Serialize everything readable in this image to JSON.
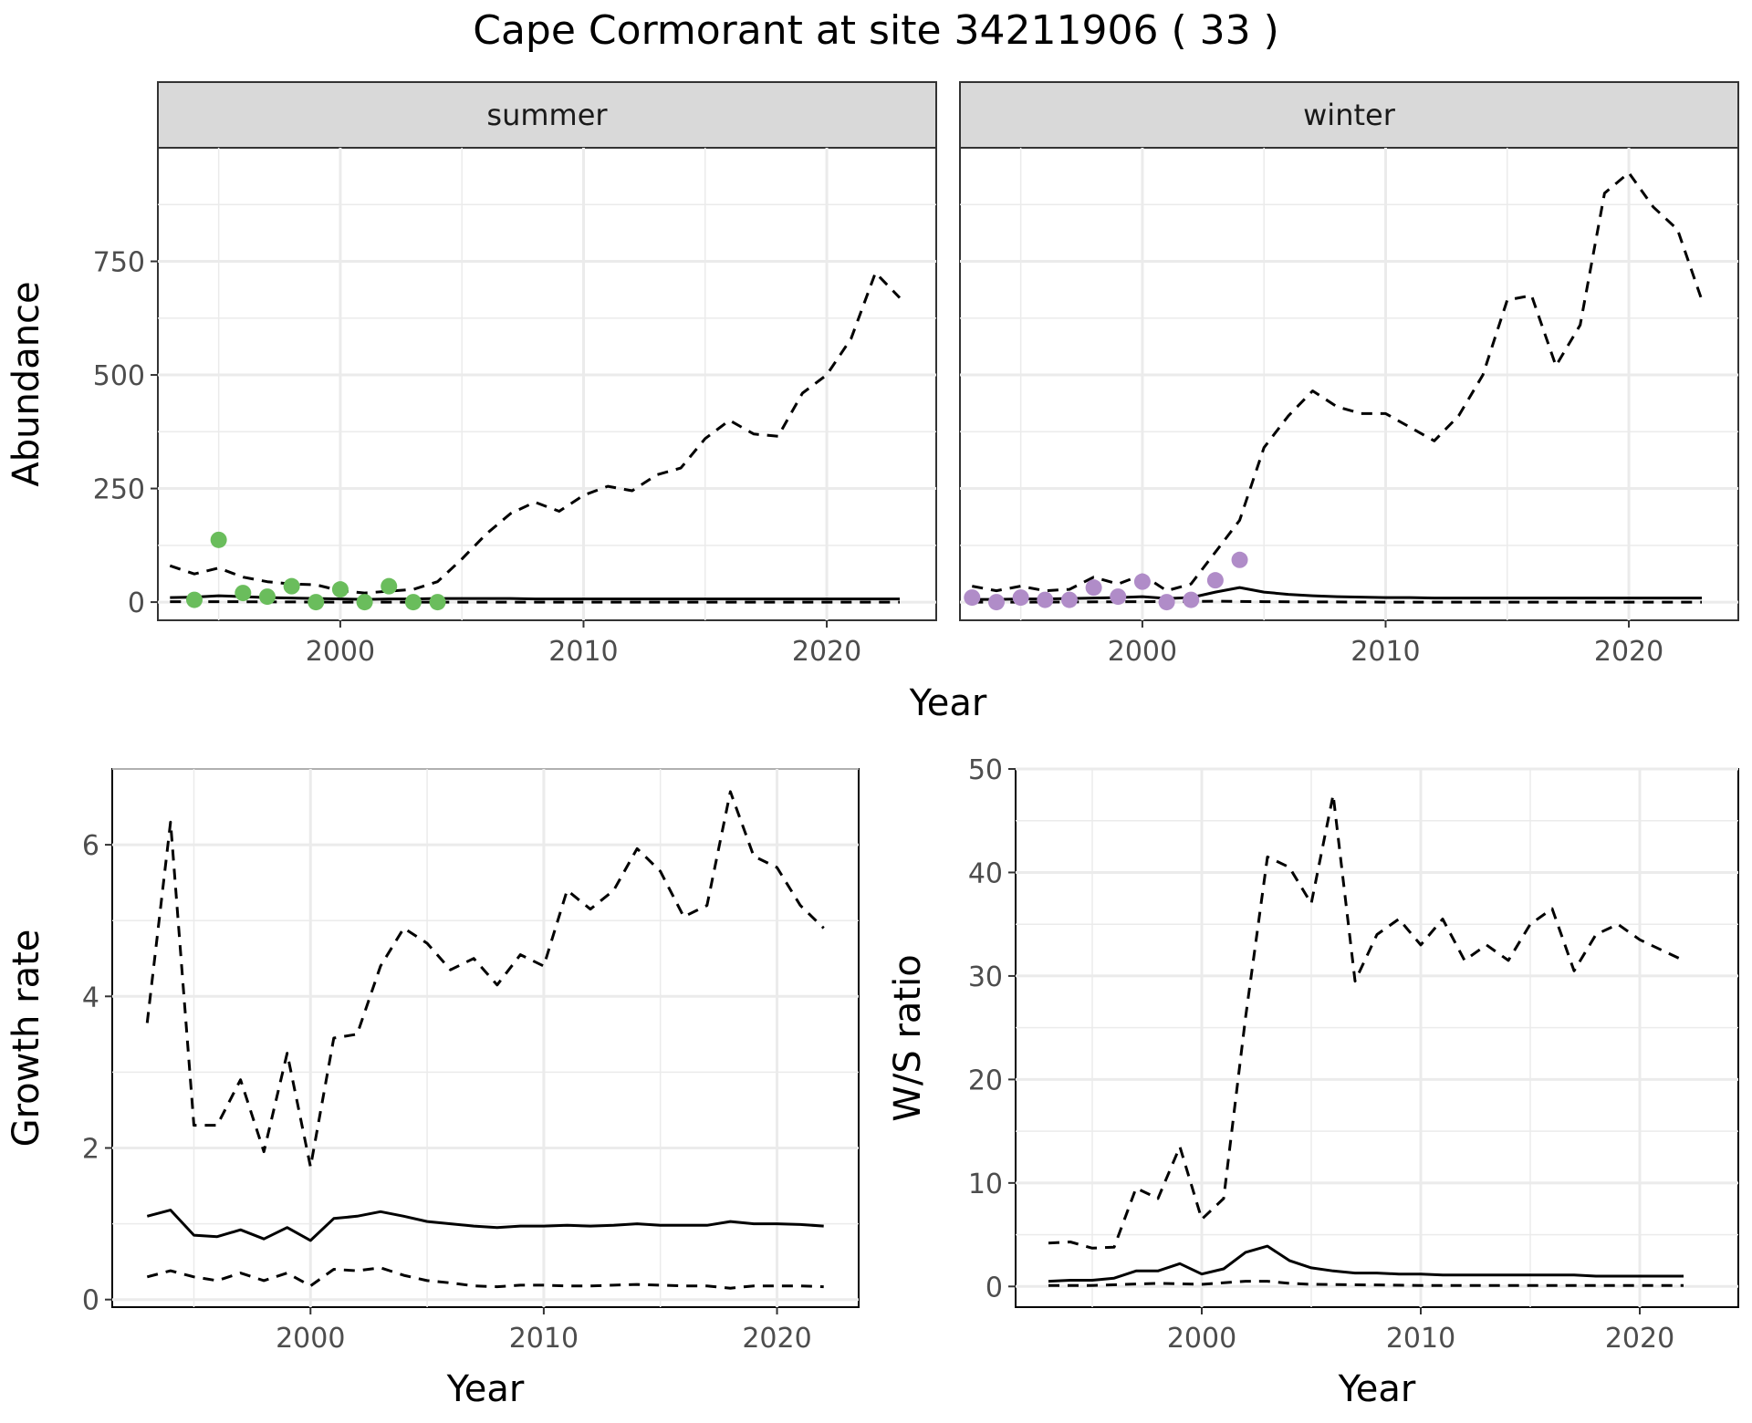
{
  "title": "Cape Cormorant at site 34211906 ( 33 )",
  "colors": {
    "summer_points": "#6ABD5C",
    "winter_points": "#B08CC8",
    "lines": "#000000",
    "strip": "#D9D9D9",
    "grid": "#EBEBEB"
  },
  "chart_data": [
    {
      "type": "line",
      "facet": "summer",
      "xlabel": "",
      "ylabel": "Abundance",
      "xlim": [
        1992.5,
        2024.5
      ],
      "ylim": [
        -40,
        1000
      ],
      "x_ticks": [
        2000,
        2010,
        2020
      ],
      "y_ticks": [
        0,
        250,
        500,
        750
      ],
      "grid": true,
      "series": [
        {
          "style": "solid",
          "x": [
            1993,
            1994,
            1995,
            1996,
            1997,
            1998,
            1999,
            2000,
            2001,
            2002,
            2003,
            2004,
            2005,
            2006,
            2007,
            2008,
            2009,
            2010,
            2011,
            2012,
            2013,
            2014,
            2015,
            2016,
            2017,
            2018,
            2019,
            2020,
            2021,
            2022,
            2023
          ],
          "y": [
            10,
            11,
            14,
            12,
            10,
            9,
            8,
            7,
            6,
            7,
            7,
            8,
            8,
            8,
            8,
            7,
            7,
            7,
            7,
            7,
            7,
            7,
            7,
            7,
            7,
            7,
            7,
            7,
            7,
            7,
            7
          ]
        },
        {
          "style": "dashed",
          "x": [
            1993,
            1994,
            1995,
            1996,
            1997,
            1998,
            1999,
            2000,
            2001,
            2002,
            2003,
            2004,
            2005,
            2006,
            2007,
            2008,
            2009,
            2010,
            2011,
            2012,
            2013,
            2014,
            2015,
            2016,
            2017,
            2018,
            2019,
            2020,
            2021,
            2022,
            2023
          ],
          "y": [
            80,
            62,
            75,
            55,
            45,
            40,
            38,
            25,
            20,
            24,
            28,
            45,
            95,
            150,
            195,
            220,
            200,
            235,
            255,
            245,
            280,
            295,
            360,
            400,
            370,
            365,
            460,
            500,
            580,
            725,
            670
          ]
        },
        {
          "style": "dashed",
          "x": [
            1993,
            1995,
            2000,
            2005,
            2010,
            2015,
            2020,
            2023
          ],
          "y": [
            1,
            1,
            0,
            0,
            0,
            0,
            0,
            0
          ]
        },
        {
          "style": "points",
          "x": [
            1994,
            1995,
            1996,
            1997,
            1998,
            1999,
            2000,
            2001,
            2002,
            2003,
            2004
          ],
          "y": [
            5,
            137,
            20,
            12,
            35,
            0,
            28,
            0,
            35,
            0,
            0
          ]
        }
      ]
    },
    {
      "type": "line",
      "facet": "winter",
      "xlabel": "",
      "ylabel": "",
      "xlim": [
        1992.5,
        2024.5
      ],
      "ylim": [
        -40,
        1000
      ],
      "x_ticks": [
        2000,
        2010,
        2020
      ],
      "y_ticks": [
        0,
        250,
        500,
        750
      ],
      "grid": true,
      "series": [
        {
          "style": "solid",
          "x": [
            1993,
            1994,
            1995,
            1996,
            1997,
            1998,
            1999,
            2000,
            2001,
            2002,
            2003,
            2004,
            2005,
            2006,
            2007,
            2008,
            2009,
            2010,
            2011,
            2012,
            2013,
            2014,
            2015,
            2016,
            2017,
            2018,
            2019,
            2020,
            2021,
            2022,
            2023
          ],
          "y": [
            6,
            6,
            7,
            7,
            8,
            9,
            10,
            12,
            8,
            10,
            22,
            32,
            22,
            17,
            14,
            12,
            11,
            10,
            10,
            9,
            9,
            9,
            9,
            9,
            9,
            9,
            9,
            9,
            9,
            9,
            9
          ]
        },
        {
          "style": "dashed",
          "x": [
            1993,
            1994,
            1995,
            1996,
            1997,
            1998,
            1999,
            2000,
            2001,
            2002,
            2003,
            2004,
            2005,
            2006,
            2007,
            2008,
            2009,
            2010,
            2011,
            2012,
            2013,
            2014,
            2015,
            2016,
            2017,
            2018,
            2019,
            2020,
            2021,
            2022,
            2023
          ],
          "y": [
            35,
            25,
            35,
            25,
            28,
            55,
            40,
            60,
            25,
            40,
            110,
            180,
            340,
            410,
            465,
            430,
            415,
            415,
            385,
            355,
            410,
            500,
            665,
            675,
            520,
            610,
            900,
            945,
            870,
            820,
            665
          ]
        },
        {
          "style": "dashed",
          "x": [
            1993,
            1995,
            2000,
            2003,
            2005,
            2010,
            2015,
            2020,
            2023
          ],
          "y": [
            0,
            0,
            1,
            2,
            1,
            0,
            0,
            0,
            0
          ]
        },
        {
          "style": "points",
          "x": [
            1993,
            1994,
            1995,
            1996,
            1997,
            1998,
            1999,
            2000,
            2001,
            2002,
            2003,
            2004
          ],
          "y": [
            10,
            0,
            10,
            5,
            5,
            32,
            12,
            45,
            0,
            5,
            48,
            93
          ]
        }
      ]
    },
    {
      "type": "line",
      "xlabel": "Year",
      "ylabel": "Growth rate",
      "xlim": [
        1991.5,
        2023.5
      ],
      "ylim": [
        -0.1,
        7.0
      ],
      "x_ticks": [
        2000,
        2010,
        2020
      ],
      "y_ticks": [
        0,
        2,
        4,
        6
      ],
      "grid": true,
      "series": [
        {
          "style": "solid",
          "x": [
            1993,
            1994,
            1995,
            1996,
            1997,
            1998,
            1999,
            2000,
            2001,
            2002,
            2003,
            2004,
            2005,
            2006,
            2007,
            2008,
            2009,
            2010,
            2011,
            2012,
            2013,
            2014,
            2015,
            2016,
            2017,
            2018,
            2019,
            2020,
            2021,
            2022
          ],
          "y": [
            1.1,
            1.18,
            0.85,
            0.83,
            0.92,
            0.8,
            0.95,
            0.78,
            1.07,
            1.1,
            1.16,
            1.1,
            1.03,
            1.0,
            0.97,
            0.95,
            0.97,
            0.97,
            0.98,
            0.97,
            0.98,
            1.0,
            0.98,
            0.98,
            0.98,
            1.03,
            1.0,
            1.0,
            0.99,
            0.97
          ]
        },
        {
          "style": "dashed",
          "x": [
            1993,
            1994,
            1995,
            1996,
            1997,
            1998,
            1999,
            2000,
            2001,
            2002,
            2003,
            2004,
            2005,
            2006,
            2007,
            2008,
            2009,
            2010,
            2011,
            2012,
            2013,
            2014,
            2015,
            2016,
            2017,
            2018,
            2019,
            2020,
            2021,
            2022
          ],
          "y": [
            3.65,
            6.3,
            2.3,
            2.3,
            2.9,
            1.95,
            3.25,
            1.75,
            3.45,
            3.5,
            4.4,
            4.9,
            4.7,
            4.35,
            4.5,
            4.15,
            4.55,
            4.4,
            5.4,
            5.15,
            5.4,
            5.95,
            5.65,
            5.05,
            5.2,
            6.7,
            5.85,
            5.7,
            5.2,
            4.9
          ]
        },
        {
          "style": "dashed",
          "x": [
            1993,
            1994,
            1995,
            1996,
            1997,
            1998,
            1999,
            2000,
            2001,
            2002,
            2003,
            2004,
            2005,
            2006,
            2007,
            2008,
            2009,
            2010,
            2011,
            2012,
            2013,
            2014,
            2015,
            2016,
            2017,
            2018,
            2019,
            2020,
            2021,
            2022
          ],
          "y": [
            0.3,
            0.38,
            0.3,
            0.25,
            0.35,
            0.25,
            0.35,
            0.18,
            0.4,
            0.38,
            0.42,
            0.32,
            0.25,
            0.22,
            0.18,
            0.17,
            0.19,
            0.19,
            0.18,
            0.18,
            0.19,
            0.2,
            0.19,
            0.18,
            0.18,
            0.15,
            0.18,
            0.18,
            0.18,
            0.17
          ]
        }
      ]
    },
    {
      "type": "line",
      "xlabel": "Year",
      "ylabel": "W/S ratio",
      "xlim": [
        1991.5,
        2024.5
      ],
      "ylim": [
        -2,
        50
      ],
      "x_ticks": [
        2000,
        2010,
        2020
      ],
      "y_ticks": [
        0,
        10,
        20,
        30,
        40,
        50
      ],
      "grid": true,
      "series": [
        {
          "style": "solid",
          "x": [
            1993,
            1994,
            1995,
            1996,
            1997,
            1998,
            1999,
            2000,
            2001,
            2002,
            2003,
            2004,
            2005,
            2006,
            2007,
            2008,
            2009,
            2010,
            2011,
            2012,
            2013,
            2014,
            2015,
            2016,
            2017,
            2018,
            2019,
            2020,
            2021,
            2022
          ],
          "y": [
            0.5,
            0.6,
            0.6,
            0.8,
            1.5,
            1.5,
            2.2,
            1.2,
            1.7,
            3.3,
            3.9,
            2.5,
            1.8,
            1.5,
            1.3,
            1.3,
            1.2,
            1.2,
            1.1,
            1.1,
            1.1,
            1.1,
            1.1,
            1.1,
            1.1,
            1.0,
            1.0,
            1.0,
            1.0,
            1.0
          ]
        },
        {
          "style": "dashed",
          "x": [
            1993,
            1994,
            1995,
            1996,
            1997,
            1998,
            1999,
            2000,
            2001,
            2002,
            2003,
            2004,
            2005,
            2006,
            2007,
            2008,
            2009,
            2010,
            2011,
            2012,
            2013,
            2014,
            2015,
            2016,
            2017,
            2018,
            2019,
            2020,
            2021,
            2022
          ],
          "y": [
            4.2,
            4.3,
            3.7,
            3.8,
            9.5,
            8.5,
            13.5,
            6.5,
            8.5,
            26.0,
            41.5,
            40.5,
            37.0,
            47.5,
            29.5,
            34.0,
            35.5,
            33.0,
            35.5,
            31.5,
            33.0,
            31.5,
            35.0,
            36.5,
            30.5,
            34.0,
            35.0,
            33.5,
            32.5,
            31.5
          ]
        },
        {
          "style": "dashed",
          "x": [
            1993,
            1995,
            1998,
            2000,
            2002,
            2003,
            2004,
            2005,
            2010,
            2015,
            2020,
            2022
          ],
          "y": [
            0.1,
            0.1,
            0.3,
            0.2,
            0.5,
            0.5,
            0.3,
            0.2,
            0.1,
            0.1,
            0.1,
            0.1
          ]
        }
      ]
    }
  ]
}
